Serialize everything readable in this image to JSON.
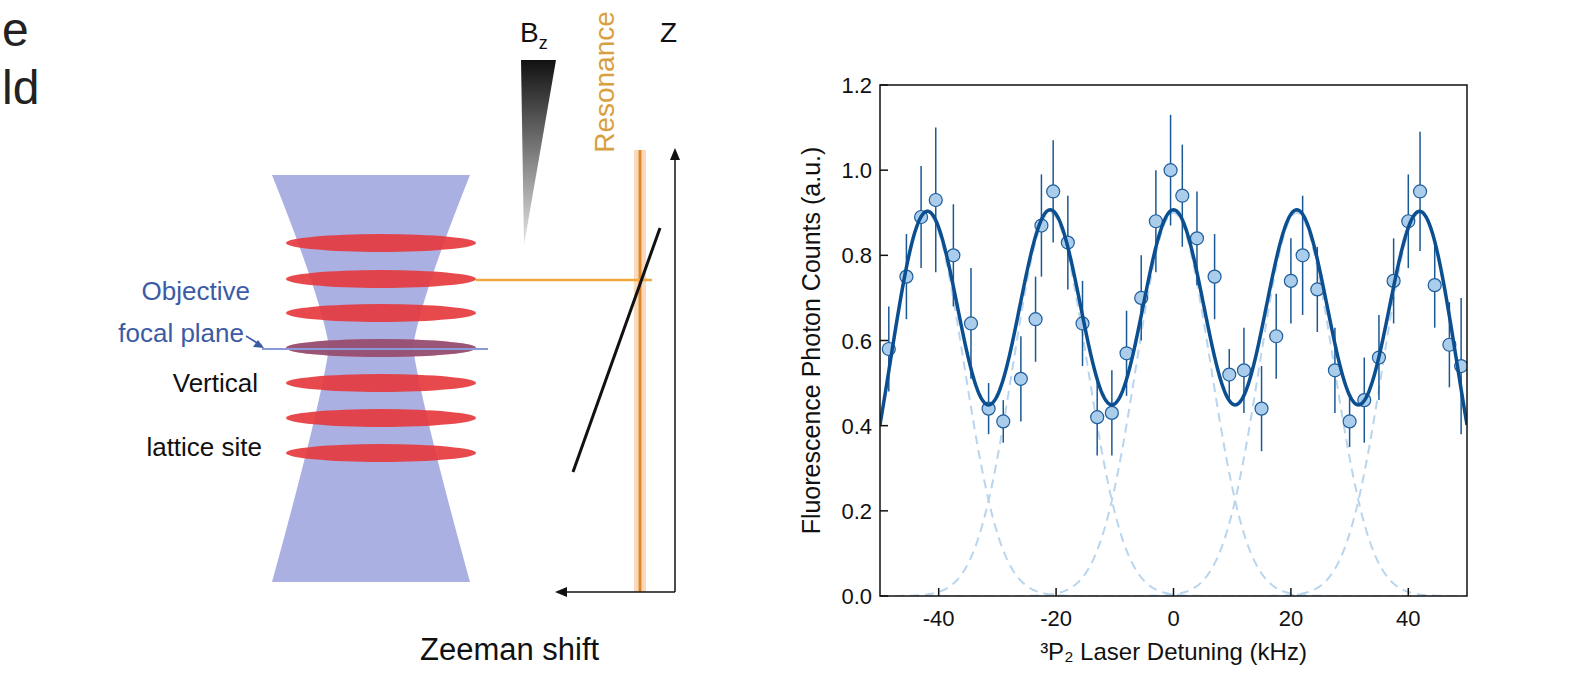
{
  "diagram": {
    "title_fragments": [
      "e",
      "ld"
    ],
    "labels": {
      "bz": {
        "main": "B",
        "subscript": "z"
      },
      "resonance": "Resonance",
      "z": "Z",
      "focal_plane": [
        "Objective",
        "focal plane"
      ],
      "lattice": [
        "Vertical",
        "lattice site"
      ],
      "zeeman": "Zeeman shift"
    }
  },
  "chart_data": {
    "type": "scatter",
    "x_label": "³P₂  Laser Detuning (kHz)",
    "y_label": "Fluorescence Photon Counts (a.u.)",
    "xlim": [
      -50,
      50
    ],
    "ylim": [
      0,
      1.2
    ],
    "xticks": [
      -40,
      -20,
      0,
      20,
      40
    ],
    "yticks": [
      {
        "value": 0,
        "label": "0.0"
      },
      {
        "value": 0.2,
        "label": "0.2"
      },
      {
        "value": 0.4,
        "label": "0.4"
      },
      {
        "value": 0.6,
        "label": "0.6"
      },
      {
        "value": 0.8,
        "label": "0.8"
      },
      {
        "value": 1.0,
        "label": "1.0"
      },
      {
        "value": 1.2,
        "label": "1.2"
      }
    ],
    "grid": false,
    "series": [
      {
        "type": "scatter",
        "marker": "circle",
        "color": "#a9cdea",
        "x": [
          -48.5,
          -45.5,
          -43,
          -40.5,
          -37.5,
          -34.5,
          -31.5,
          -29,
          -26,
          -23.5,
          -22.5,
          -20.5,
          -18,
          -15.5,
          -13,
          -10.5,
          -8,
          -5.5,
          -3,
          -0.5,
          1.5,
          4,
          7,
          9.5,
          12,
          15,
          17.5,
          20,
          22,
          24.5,
          27.5,
          30,
          32.5,
          35,
          37.5,
          40,
          42,
          44.5,
          47,
          49
        ],
        "values": [
          0.58,
          0.75,
          0.89,
          0.93,
          0.8,
          0.64,
          0.44,
          0.41,
          0.51,
          0.65,
          0.87,
          0.95,
          0.83,
          0.64,
          0.42,
          0.43,
          0.57,
          0.7,
          0.88,
          1.0,
          0.94,
          0.84,
          0.75,
          0.52,
          0.53,
          0.44,
          0.61,
          0.74,
          0.8,
          0.72,
          0.53,
          0.41,
          0.46,
          0.56,
          0.74,
          0.88,
          0.95,
          0.73,
          0.59,
          0.54
        ],
        "errors": [
          0.1,
          0.1,
          0.12,
          0.17,
          0.12,
          0.13,
          0.06,
          0.05,
          0.1,
          0.1,
          0.12,
          0.12,
          0.11,
          0.1,
          0.09,
          0.1,
          0.1,
          0.1,
          0.12,
          0.13,
          0.12,
          0.11,
          0.1,
          0.06,
          0.1,
          0.1,
          0.1,
          0.1,
          0.14,
          0.1,
          0.1,
          0.06,
          0.1,
          0.1,
          0.1,
          0.11,
          0.14,
          0.1,
          0.1,
          0.16
        ]
      }
    ],
    "fit": {
      "gaussians": [
        {
          "center": -42,
          "amplitude": 0.9,
          "sigma": 6.3
        },
        {
          "center": -21,
          "amplitude": 0.9,
          "sigma": 6.3
        },
        {
          "center": 0,
          "amplitude": 0.9,
          "sigma": 6.3
        },
        {
          "center": 21,
          "amplitude": 0.9,
          "sigma": 6.3
        },
        {
          "center": 42,
          "amplitude": 0.9,
          "sigma": 6.3
        }
      ],
      "sum": {
        "color": "#0b4f91",
        "line_style": "solid"
      },
      "components": {
        "color": "#b9d5ee",
        "line_style": "dashed"
      }
    }
  }
}
